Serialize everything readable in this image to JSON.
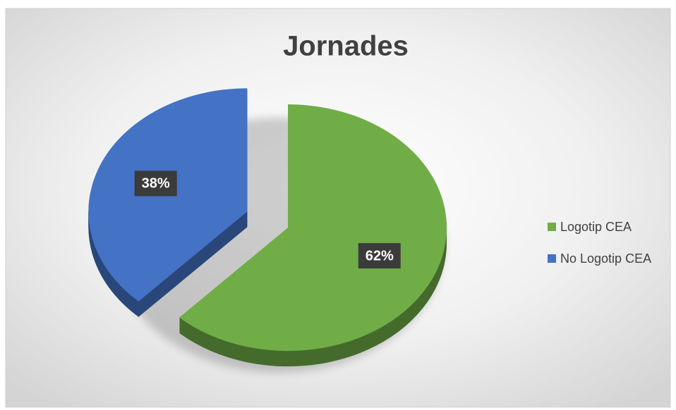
{
  "chart_data": {
    "type": "pie",
    "title": "Jornades",
    "categories": [
      "Logotip CEA",
      "No Logotip CEA"
    ],
    "values": [
      62,
      38
    ],
    "value_labels": [
      "62%",
      "38%"
    ],
    "colors": [
      "#70ad47",
      "#4472c4"
    ]
  }
}
